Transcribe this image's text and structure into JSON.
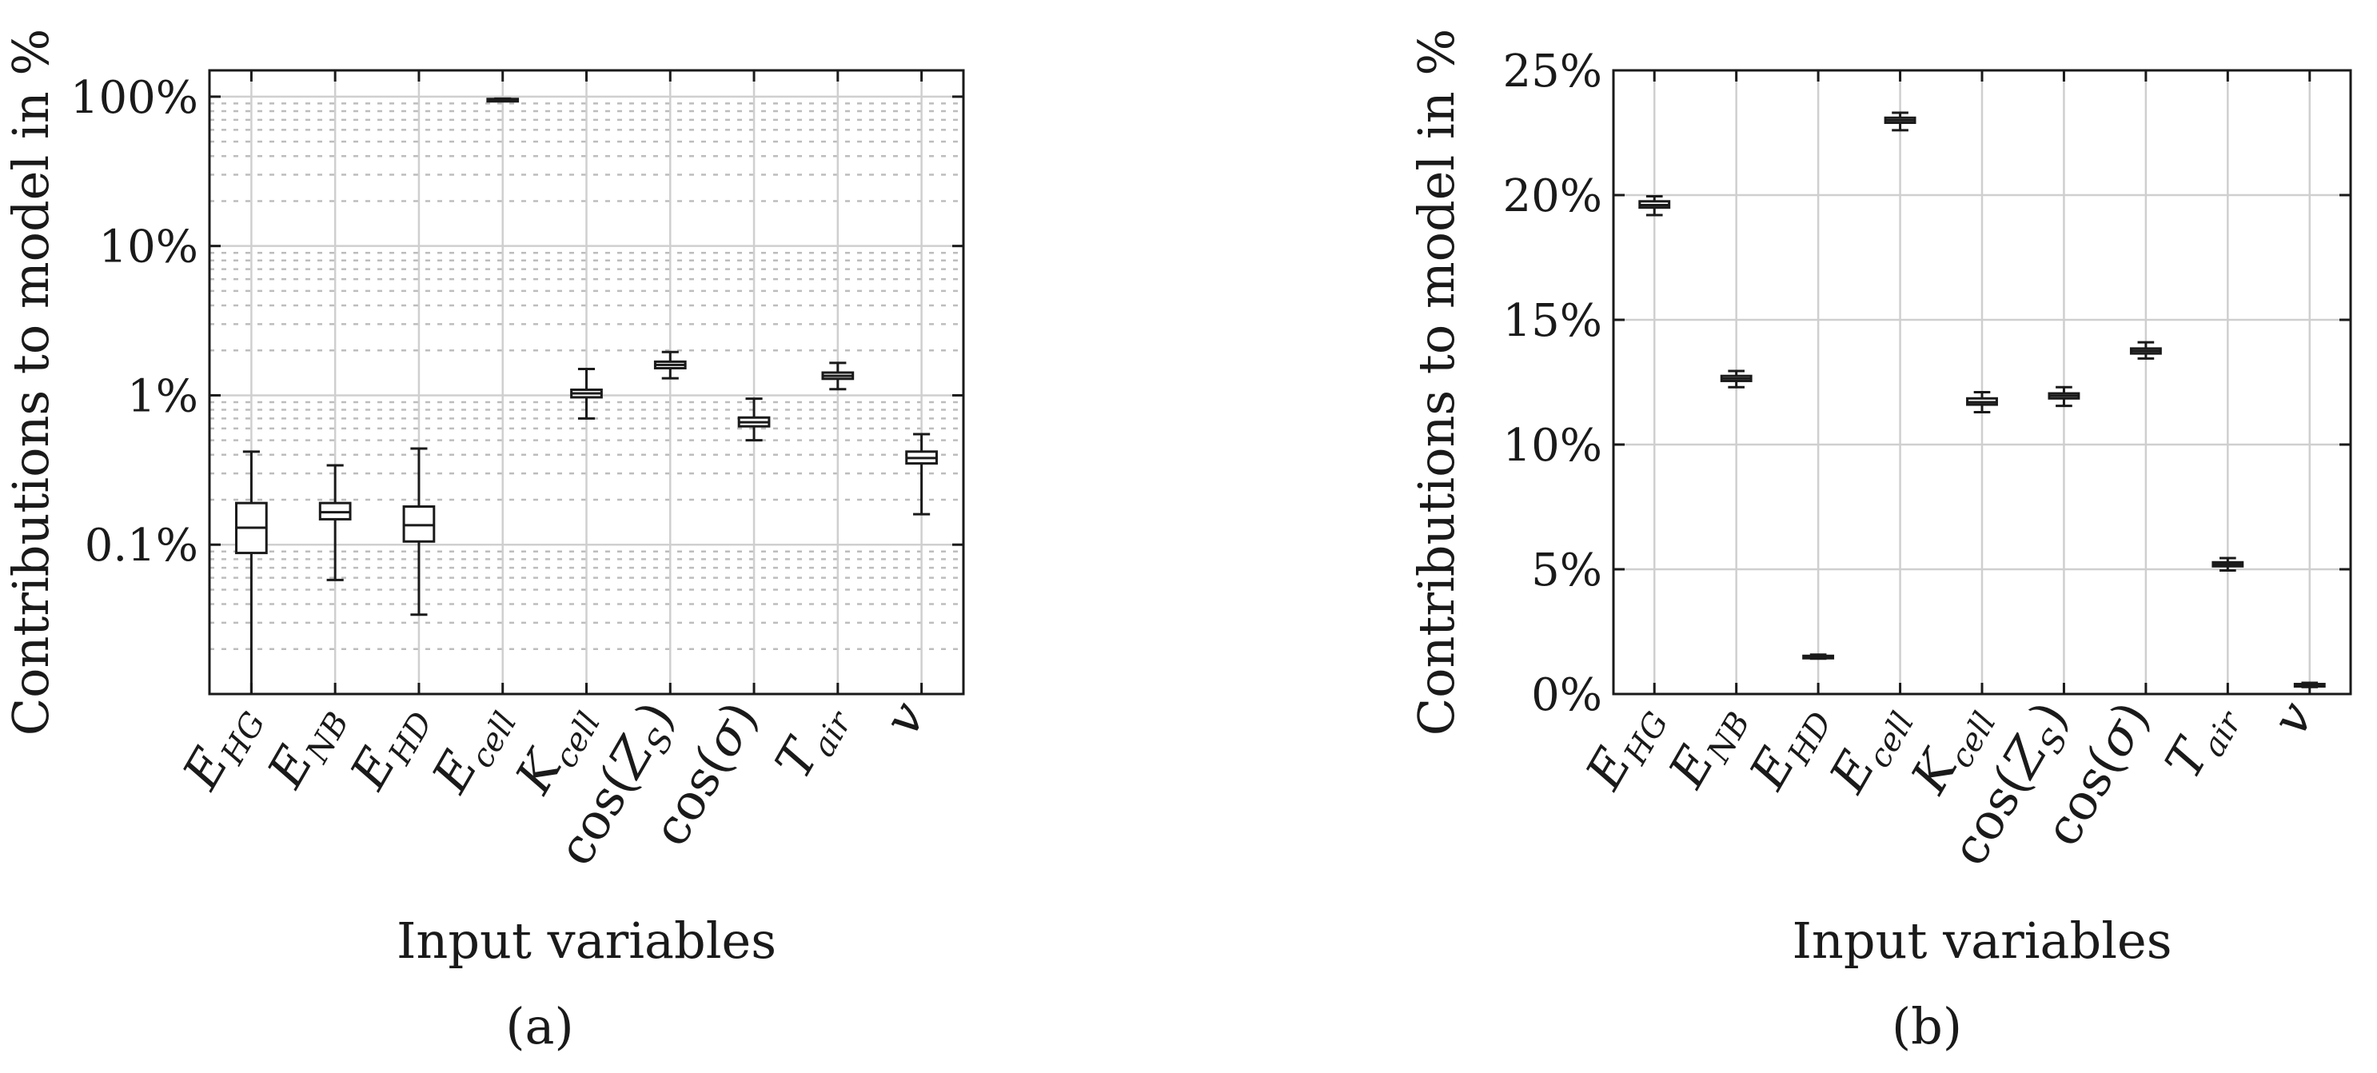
{
  "chart_data": [
    {
      "type": "box",
      "panel_label": "(a)",
      "xlabel": "Input variables",
      "ylabel": "Contributions to model in %",
      "yscale": "log",
      "ylim": [
        0.01,
        150
      ],
      "grid": "major-minor",
      "yticks": [
        0.1,
        1,
        10,
        100
      ],
      "ytick_labels": [
        "0.1%",
        "1%",
        "10%",
        "100%"
      ],
      "categories": [
        {
          "base": "E",
          "sub": "HG"
        },
        {
          "base": "E",
          "sub": "NB"
        },
        {
          "base": "E",
          "sub": "HD"
        },
        {
          "base": "E",
          "sub": "cell"
        },
        {
          "base": "K",
          "sub": "cell"
        },
        {
          "base": "cos(",
          "italic": "Z",
          "sub": "S",
          "tail": ")"
        },
        {
          "base": "cos(",
          "italic": "σ",
          "tail": ")"
        },
        {
          "base": "T",
          "sub": "air"
        },
        {
          "base": "v"
        }
      ],
      "boxes": [
        {
          "whislo": 0.01,
          "q1": 0.088,
          "med": 0.13,
          "q3": 0.19,
          "whishi": 0.42
        },
        {
          "whislo": 0.058,
          "q1": 0.148,
          "med": 0.165,
          "q3": 0.19,
          "whishi": 0.34
        },
        {
          "whislo": 0.034,
          "q1": 0.105,
          "med": 0.135,
          "q3": 0.18,
          "whishi": 0.44
        },
        {
          "whislo": 94,
          "q1": 95.5,
          "med": 96,
          "q3": 96.5,
          "whishi": 97
        },
        {
          "whislo": 0.7,
          "q1": 0.97,
          "med": 1.03,
          "q3": 1.09,
          "whishi": 1.5
        },
        {
          "whislo": 1.3,
          "q1": 1.52,
          "med": 1.6,
          "q3": 1.68,
          "whishi": 1.95
        },
        {
          "whislo": 0.5,
          "q1": 0.62,
          "med": 0.66,
          "q3": 0.71,
          "whishi": 0.95
        },
        {
          "whislo": 1.1,
          "q1": 1.29,
          "med": 1.35,
          "q3": 1.42,
          "whishi": 1.65
        },
        {
          "whislo": 0.16,
          "q1": 0.35,
          "med": 0.38,
          "q3": 0.42,
          "whishi": 0.55
        }
      ]
    },
    {
      "type": "box",
      "panel_label": "(b)",
      "xlabel": "Input variables",
      "ylabel": "Contributions to model in %",
      "yscale": "linear",
      "ylim": [
        0,
        25
      ],
      "grid": "major",
      "yticks": [
        0,
        5,
        10,
        15,
        20,
        25
      ],
      "ytick_labels": [
        "0%",
        "5%",
        "10%",
        "15%",
        "20%",
        "25%"
      ],
      "categories": [
        {
          "base": "E",
          "sub": "HG"
        },
        {
          "base": "E",
          "sub": "NB"
        },
        {
          "base": "E",
          "sub": "HD"
        },
        {
          "base": "E",
          "sub": "cell"
        },
        {
          "base": "K",
          "sub": "cell"
        },
        {
          "base": "cos(",
          "italic": "Z",
          "sub": "S",
          "tail": ")"
        },
        {
          "base": "cos(",
          "italic": "σ",
          "tail": ")"
        },
        {
          "base": "T",
          "sub": "air"
        },
        {
          "base": "v"
        }
      ],
      "boxes": [
        {
          "whislo": 19.2,
          "q1": 19.5,
          "med": 19.6,
          "q3": 19.75,
          "whishi": 19.95
        },
        {
          "whislo": 12.3,
          "q1": 12.55,
          "med": 12.65,
          "q3": 12.75,
          "whishi": 12.95
        },
        {
          "whislo": 1.42,
          "q1": 1.48,
          "med": 1.5,
          "q3": 1.53,
          "whishi": 1.58
        },
        {
          "whislo": 22.6,
          "q1": 22.9,
          "med": 23.0,
          "q3": 23.1,
          "whishi": 23.3
        },
        {
          "whislo": 11.3,
          "q1": 11.6,
          "med": 11.7,
          "q3": 11.85,
          "whishi": 12.1
        },
        {
          "whislo": 11.55,
          "q1": 11.85,
          "med": 11.95,
          "q3": 12.05,
          "whishi": 12.3
        },
        {
          "whislo": 13.45,
          "q1": 13.65,
          "med": 13.75,
          "q3": 13.85,
          "whishi": 14.1
        },
        {
          "whislo": 4.95,
          "q1": 5.12,
          "med": 5.2,
          "q3": 5.28,
          "whishi": 5.45
        },
        {
          "whislo": 0.28,
          "q1": 0.34,
          "med": 0.36,
          "q3": 0.4,
          "whishi": 0.45
        }
      ]
    }
  ]
}
